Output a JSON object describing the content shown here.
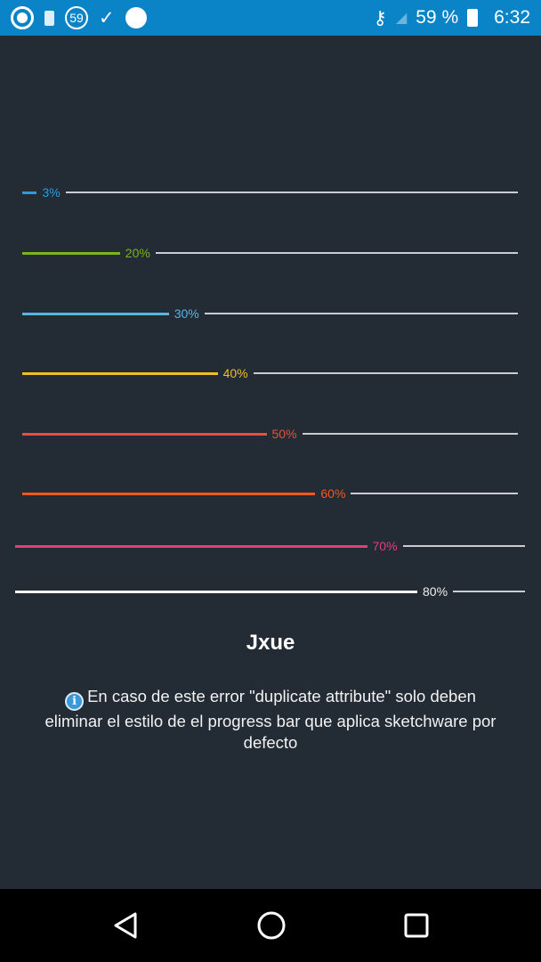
{
  "status_bar": {
    "notif_count": "59",
    "battery": "59 %",
    "time": "6:32"
  },
  "progress_bars": [
    {
      "percent": 3,
      "label": "3%",
      "color": "#2e9be0",
      "wide": false
    },
    {
      "percent": 20,
      "label": "20%",
      "color": "#7cb518",
      "wide": false
    },
    {
      "percent": 30,
      "label": "30%",
      "color": "#5ab4e0",
      "wide": false
    },
    {
      "percent": 40,
      "label": "40%",
      "color": "#f0c020",
      "wide": false
    },
    {
      "percent": 50,
      "label": "50%",
      "color": "#e8503a",
      "wide": false
    },
    {
      "percent": 60,
      "label": "60%",
      "color": "#f05a1e",
      "wide": false
    },
    {
      "percent": 70,
      "label": "70%",
      "color": "#e0407a",
      "wide": true
    },
    {
      "percent": 80,
      "label": "80%",
      "color": "#ffffff",
      "wide": true
    }
  ],
  "title": "Jxue",
  "note": "En caso de este error \"duplicate attribute\" solo deben eliminar el estilo de el progress bar que aplica sketchware por defecto",
  "info_glyph": "i"
}
